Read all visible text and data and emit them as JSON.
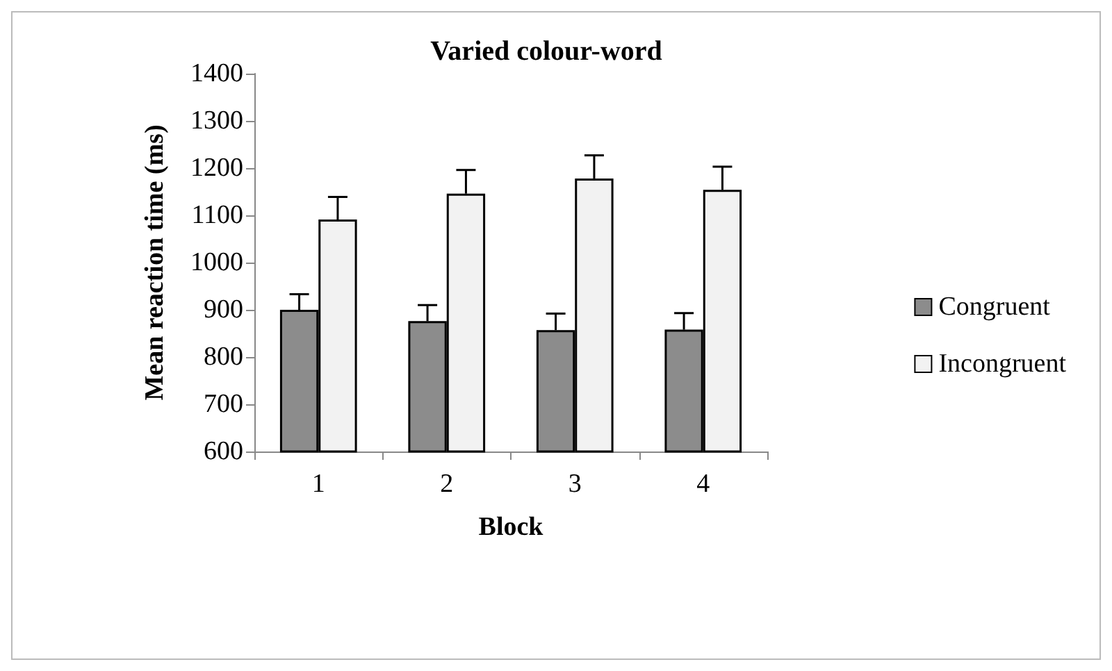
{
  "chart_data": {
    "type": "bar",
    "title": "Varied colour-word",
    "xlabel": "Block",
    "ylabel": "Mean reaction time (ms)",
    "categories": [
      "1",
      "2",
      "3",
      "4"
    ],
    "series": [
      {
        "name": "Congruent",
        "color": "#8c8c8c",
        "values": [
          900,
          876,
          857,
          858
        ],
        "errors": [
          33,
          34,
          35,
          35
        ]
      },
      {
        "name": "Incongruent",
        "color": "#f2f2f2",
        "values": [
          1091,
          1146,
          1178,
          1154
        ],
        "errors": [
          48,
          50,
          49,
          49
        ]
      }
    ],
    "ylim": [
      600,
      1400
    ],
    "yticks": [
      600,
      700,
      800,
      900,
      1000,
      1100,
      1200,
      1300,
      1400
    ],
    "grid": false,
    "legend": "right"
  }
}
